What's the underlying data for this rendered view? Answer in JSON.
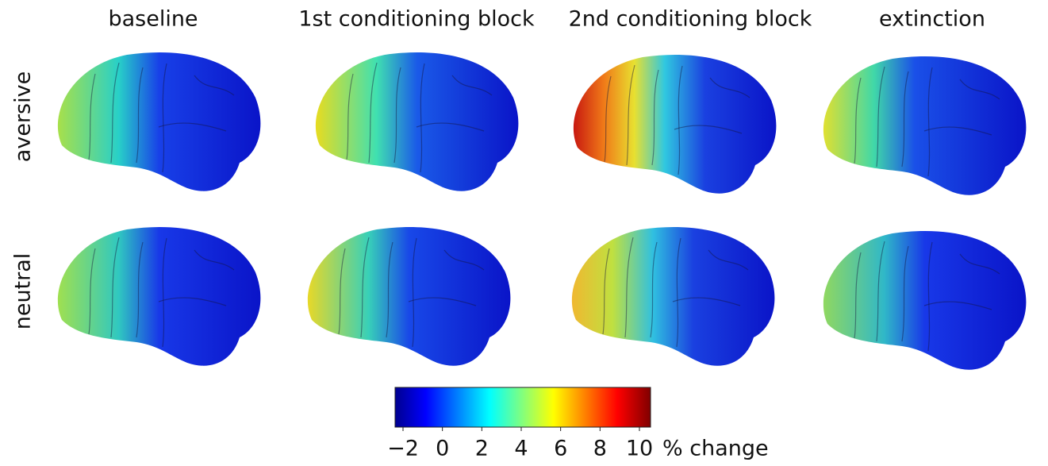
{
  "columns": [
    "baseline",
    "1st conditioning block",
    "2nd conditioning block",
    "extinction"
  ],
  "rows": [
    "aversive",
    "neutral"
  ],
  "colorbar": {
    "lim": [
      -2,
      10
    ],
    "ticks": [
      {
        "value": -2,
        "label": "−2"
      },
      0,
      2,
      4,
      6,
      8,
      10
    ],
    "label": "% change"
  }
}
